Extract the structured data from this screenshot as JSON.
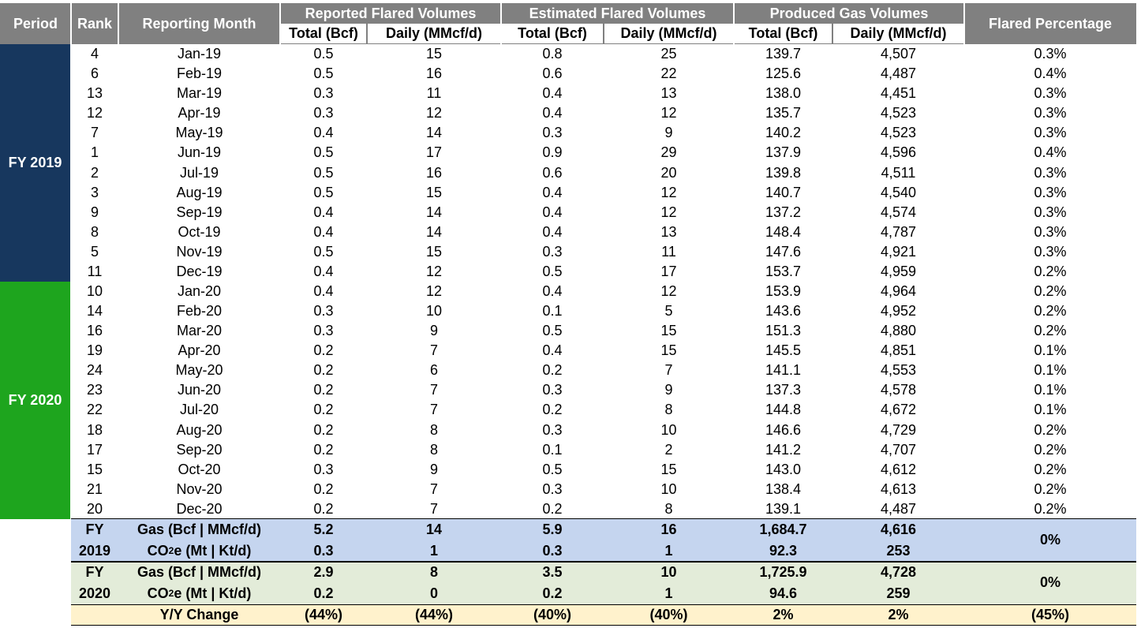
{
  "columns": {
    "period": "Period",
    "rank": "Rank",
    "month": "Reporting Month",
    "reported": "Reported Flared Volumes",
    "estimated": "Estimated Flared Volumes",
    "produced": "Produced Gas Volumes",
    "flared_pct": "Flared Percentage",
    "total": "Total (Bcf)",
    "daily": "Daily (MMcf/d)"
  },
  "periods": [
    {
      "label": "FY 2019",
      "color": "#17375e"
    },
    {
      "label": "FY 2020",
      "color": "#1ea51e"
    }
  ],
  "rows": [
    [
      "4",
      "Jan-19",
      "0.5",
      "15",
      "0.8",
      "25",
      "139.7",
      "4,507",
      "0.3%"
    ],
    [
      "6",
      "Feb-19",
      "0.5",
      "16",
      "0.6",
      "22",
      "125.6",
      "4,487",
      "0.4%"
    ],
    [
      "13",
      "Mar-19",
      "0.3",
      "11",
      "0.4",
      "13",
      "138.0",
      "4,451",
      "0.3%"
    ],
    [
      "12",
      "Apr-19",
      "0.3",
      "12",
      "0.4",
      "12",
      "135.7",
      "4,523",
      "0.3%"
    ],
    [
      "7",
      "May-19",
      "0.4",
      "14",
      "0.3",
      "9",
      "140.2",
      "4,523",
      "0.3%"
    ],
    [
      "1",
      "Jun-19",
      "0.5",
      "17",
      "0.9",
      "29",
      "137.9",
      "4,596",
      "0.4%"
    ],
    [
      "2",
      "Jul-19",
      "0.5",
      "16",
      "0.6",
      "20",
      "139.8",
      "4,511",
      "0.3%"
    ],
    [
      "3",
      "Aug-19",
      "0.5",
      "15",
      "0.4",
      "12",
      "140.7",
      "4,540",
      "0.3%"
    ],
    [
      "9",
      "Sep-19",
      "0.4",
      "14",
      "0.4",
      "12",
      "137.2",
      "4,574",
      "0.3%"
    ],
    [
      "8",
      "Oct-19",
      "0.4",
      "14",
      "0.4",
      "13",
      "148.4",
      "4,787",
      "0.3%"
    ],
    [
      "5",
      "Nov-19",
      "0.5",
      "15",
      "0.3",
      "11",
      "147.6",
      "4,921",
      "0.3%"
    ],
    [
      "11",
      "Dec-19",
      "0.4",
      "12",
      "0.5",
      "17",
      "153.7",
      "4,959",
      "0.2%"
    ],
    [
      "10",
      "Jan-20",
      "0.4",
      "12",
      "0.4",
      "12",
      "153.9",
      "4,964",
      "0.2%"
    ],
    [
      "14",
      "Feb-20",
      "0.3",
      "10",
      "0.1",
      "5",
      "143.6",
      "4,952",
      "0.2%"
    ],
    [
      "16",
      "Mar-20",
      "0.3",
      "9",
      "0.5",
      "15",
      "151.3",
      "4,880",
      "0.2%"
    ],
    [
      "19",
      "Apr-20",
      "0.2",
      "7",
      "0.4",
      "15",
      "145.5",
      "4,851",
      "0.1%"
    ],
    [
      "24",
      "May-20",
      "0.2",
      "6",
      "0.2",
      "7",
      "141.1",
      "4,553",
      "0.1%"
    ],
    [
      "23",
      "Jun-20",
      "0.2",
      "7",
      "0.3",
      "9",
      "137.3",
      "4,578",
      "0.1%"
    ],
    [
      "22",
      "Jul-20",
      "0.2",
      "7",
      "0.2",
      "8",
      "144.8",
      "4,672",
      "0.1%"
    ],
    [
      "18",
      "Aug-20",
      "0.2",
      "8",
      "0.3",
      "10",
      "146.6",
      "4,729",
      "0.2%"
    ],
    [
      "17",
      "Sep-20",
      "0.2",
      "8",
      "0.1",
      "2",
      "141.2",
      "4,707",
      "0.2%"
    ],
    [
      "15",
      "Oct-20",
      "0.3",
      "9",
      "0.5",
      "15",
      "143.0",
      "4,612",
      "0.2%"
    ],
    [
      "21",
      "Nov-20",
      "0.2",
      "7",
      "0.3",
      "10",
      "138.4",
      "4,613",
      "0.2%"
    ],
    [
      "20",
      "Dec-20",
      "0.2",
      "7",
      "0.2",
      "8",
      "139.1",
      "4,487",
      "0.2%"
    ]
  ],
  "summaries": [
    {
      "fy_line1": "FY",
      "fy_line2": "2019",
      "bg": "#c5d5ef",
      "gas_label": "Gas (Bcf | MMcf/d)",
      "co2_label_pre": "CO",
      "co2_label_sub": "2",
      "co2_label_post": "e (Mt | Kt/d)",
      "gas": [
        "5.2",
        "14",
        "5.9",
        "16",
        "1,684.7",
        "4,616"
      ],
      "co2": [
        "0.3",
        "1",
        "0.3",
        "1",
        "92.3",
        "253"
      ],
      "pct": "0%"
    },
    {
      "fy_line1": "FY",
      "fy_line2": "2020",
      "bg": "#e3ecd9",
      "gas_label": "Gas (Bcf | MMcf/d)",
      "co2_label_pre": "CO",
      "co2_label_sub": "2",
      "co2_label_post": "e (Mt | Kt/d)",
      "gas": [
        "2.9",
        "8",
        "3.5",
        "10",
        "1,725.9",
        "4,728"
      ],
      "co2": [
        "0.2",
        "0",
        "0.2",
        "1",
        "94.6",
        "259"
      ],
      "pct": "0%"
    }
  ],
  "yoy": {
    "label": "Y/Y Change",
    "bg": "#fff2cc",
    "values": [
      "(44%)",
      "(44%)",
      "(40%)",
      "(40%)",
      "2%",
      "2%",
      "(45%)"
    ]
  }
}
